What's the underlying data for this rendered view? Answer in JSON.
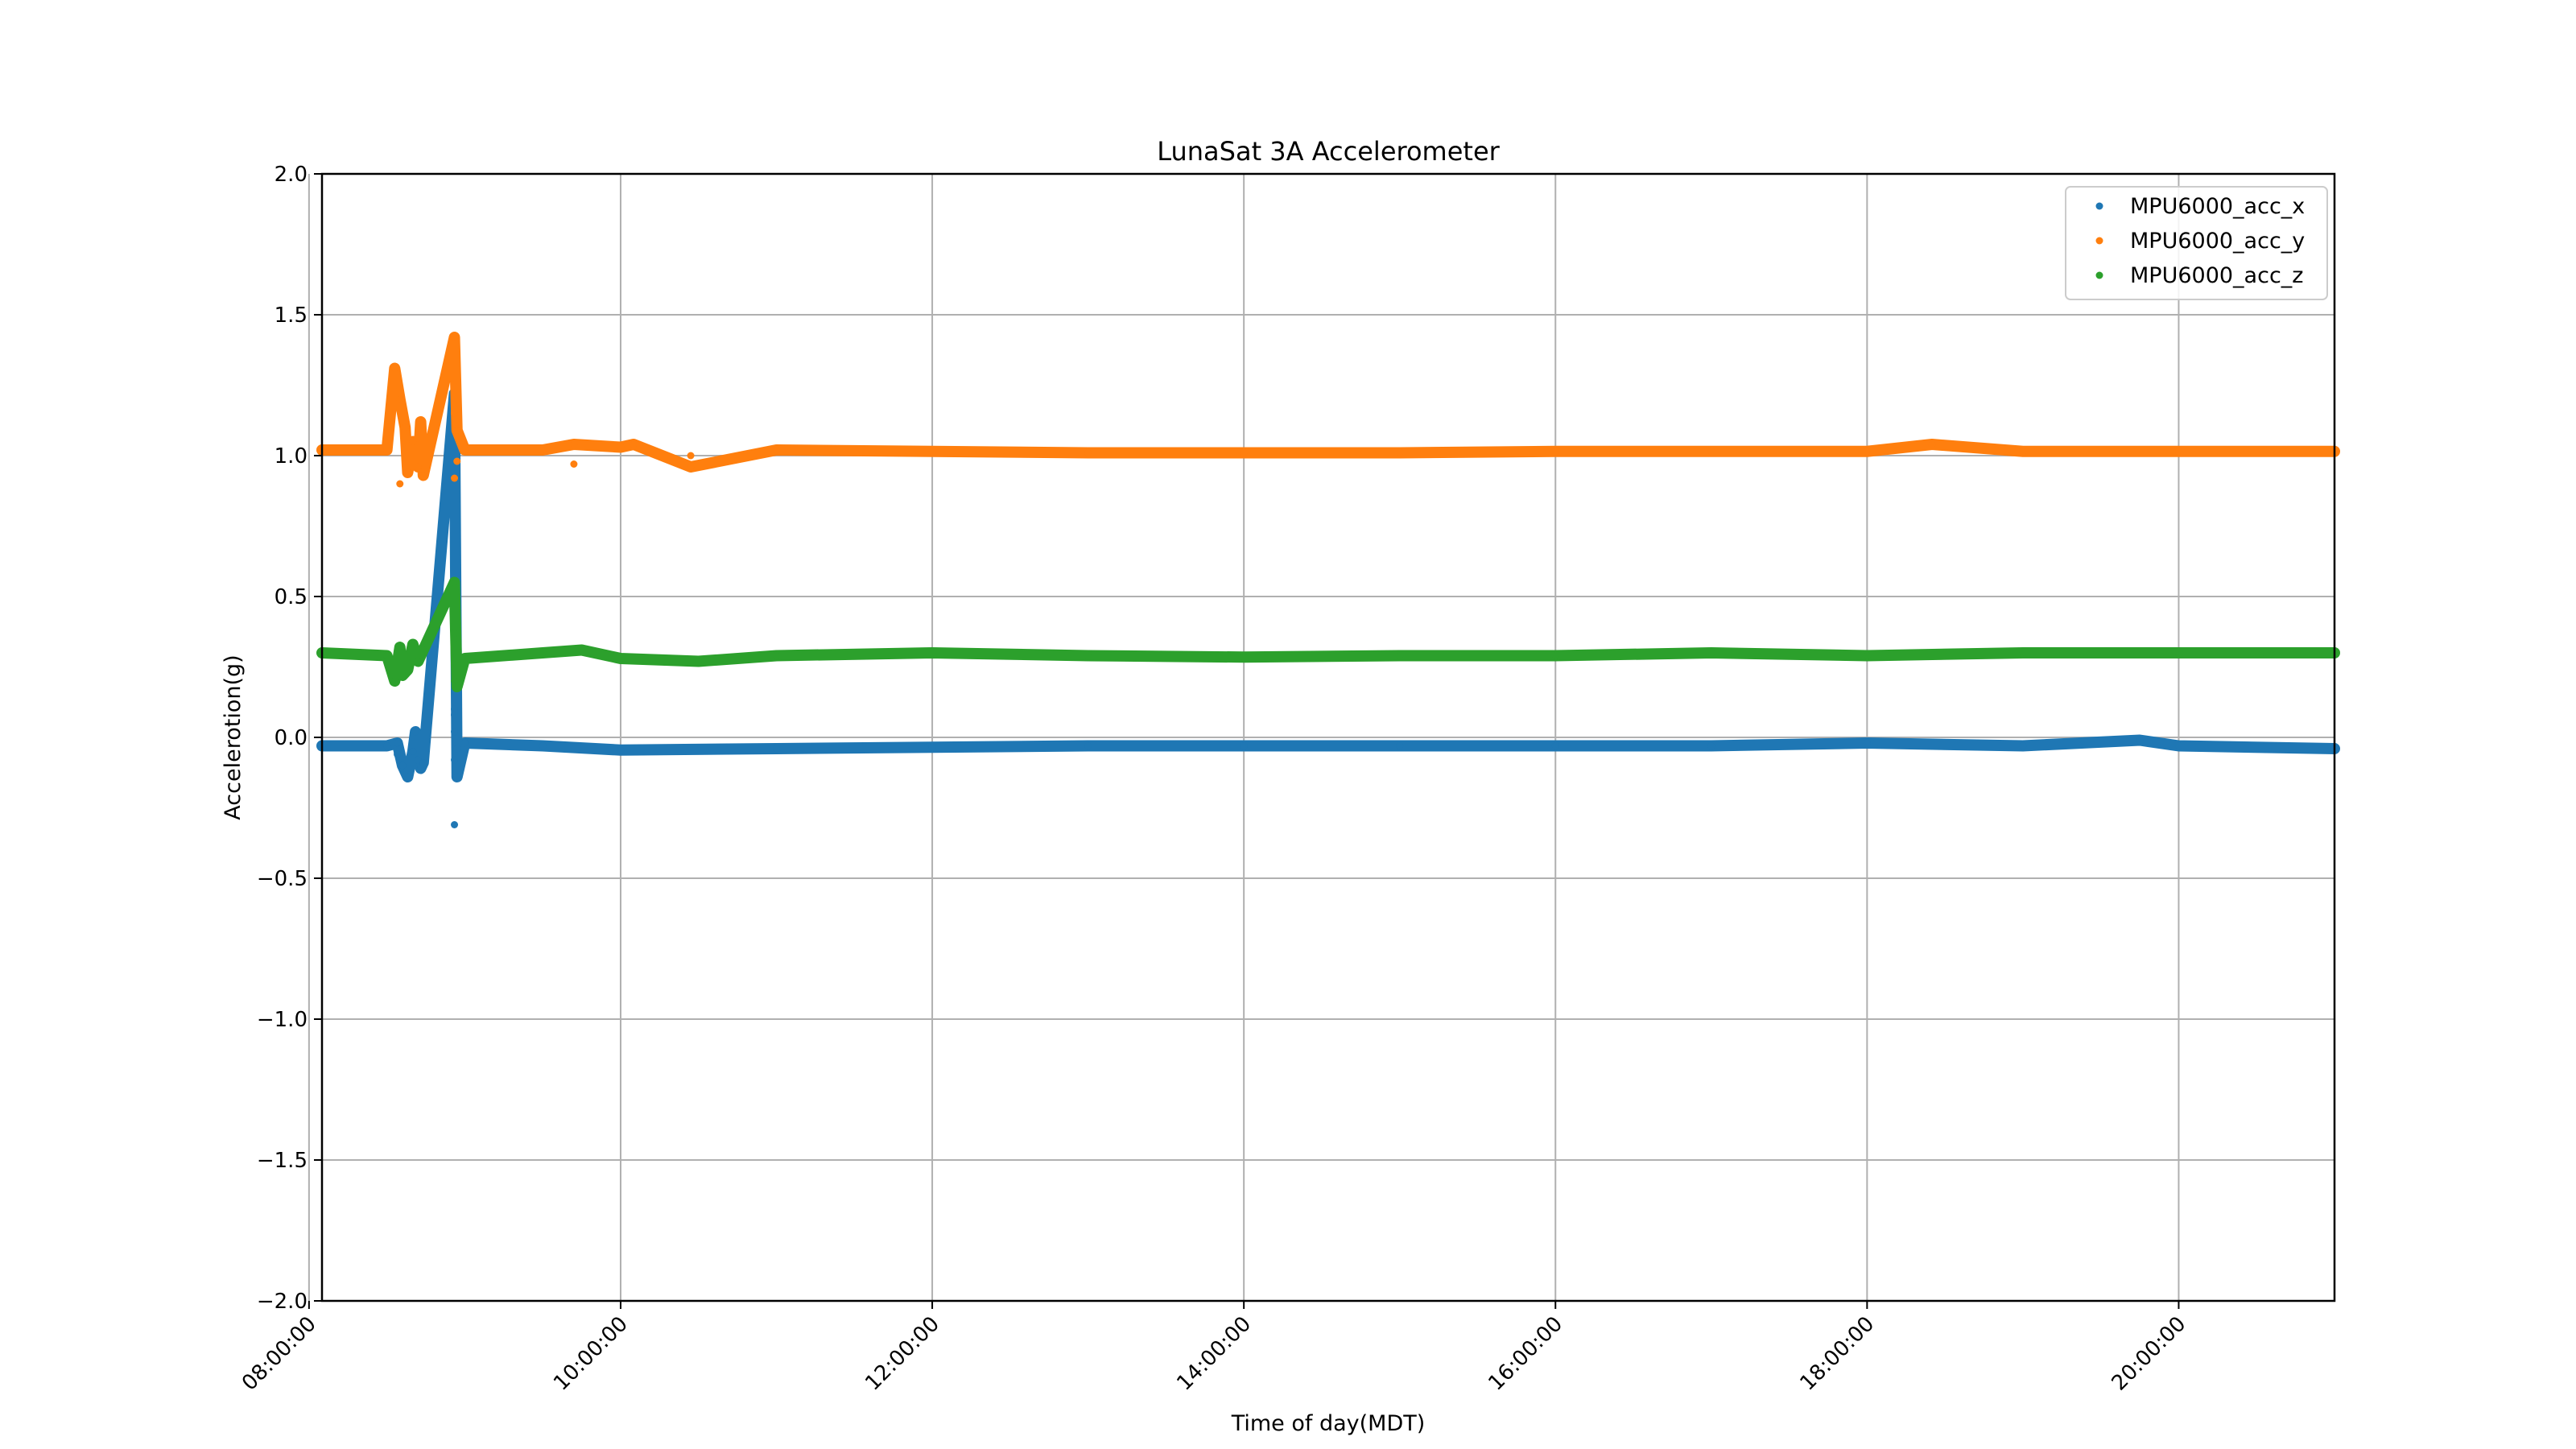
{
  "chart_data": {
    "type": "scatter",
    "title": "LunaSat 3A Accelerometer",
    "xlabel": "Time of day(MDT)",
    "ylabel": "Accelerotion(g)",
    "xlim": [
      "08:05:00",
      "21:00:00"
    ],
    "ylim": [
      -2.0,
      2.0
    ],
    "x_ticks": [
      "08:00:00",
      "10:00:00",
      "12:00:00",
      "14:00:00",
      "16:00:00",
      "18:00:00",
      "20:00:00"
    ],
    "y_ticks": [
      "2.0",
      "1.5",
      "1.0",
      "0.5",
      "0.0",
      "−0.5",
      "−1.0",
      "−1.5",
      "−2.0"
    ],
    "grid": true,
    "legend_position": "top-right",
    "series": [
      {
        "name": "MPU6000_acc_x",
        "color": "#1f77b4",
        "points": [
          [
            "08:05:00",
            -0.03
          ],
          [
            "08:30:00",
            -0.03
          ],
          [
            "08:34:00",
            -0.02
          ],
          [
            "08:34:00",
            -0.06
          ],
          [
            "08:36:00",
            -0.1
          ],
          [
            "08:38:00",
            -0.14
          ],
          [
            "08:40:00",
            -0.05
          ],
          [
            "08:41:00",
            0.02
          ],
          [
            "08:42:00",
            -0.08
          ],
          [
            "08:43:00",
            -0.11
          ],
          [
            "08:44:00",
            -0.09
          ],
          [
            "08:56:00",
            1.22
          ],
          [
            "08:56:00",
            -0.31
          ],
          [
            "08:56:00",
            0.1
          ],
          [
            "08:56:00",
            0.08
          ],
          [
            "08:56:00",
            0.02
          ],
          [
            "08:56:00",
            -0.08
          ],
          [
            "08:57:00",
            -0.14
          ],
          [
            "08:57:00",
            -0.04
          ],
          [
            "09:00:00",
            -0.02
          ],
          [
            "09:30:00",
            -0.03
          ],
          [
            "10:00:00",
            -0.045
          ],
          [
            "11:00:00",
            -0.04
          ],
          [
            "12:00:00",
            -0.035
          ],
          [
            "13:00:00",
            -0.03
          ],
          [
            "14:00:00",
            -0.03
          ],
          [
            "15:00:00",
            -0.03
          ],
          [
            "16:00:00",
            -0.03
          ],
          [
            "17:00:00",
            -0.03
          ],
          [
            "18:00:00",
            -0.02
          ],
          [
            "19:00:00",
            -0.03
          ],
          [
            "19:45:00",
            -0.01
          ],
          [
            "20:00:00",
            -0.03
          ],
          [
            "21:00:00",
            -0.04
          ]
        ]
      },
      {
        "name": "MPU6000_acc_y",
        "color": "#ff7f0e",
        "points": [
          [
            "08:05:00",
            1.02
          ],
          [
            "08:30:00",
            1.02
          ],
          [
            "08:33:00",
            1.31
          ],
          [
            "08:35:00",
            1.2
          ],
          [
            "08:35:00",
            0.9
          ],
          [
            "08:37:00",
            1.1
          ],
          [
            "08:38:00",
            0.94
          ],
          [
            "08:40:00",
            1.05
          ],
          [
            "08:42:00",
            0.96
          ],
          [
            "08:43:00",
            1.12
          ],
          [
            "08:44:00",
            0.93
          ],
          [
            "08:56:00",
            1.42
          ],
          [
            "08:56:00",
            1.15
          ],
          [
            "08:56:00",
            0.92
          ],
          [
            "08:57:00",
            1.09
          ],
          [
            "08:57:00",
            0.98
          ],
          [
            "09:00:00",
            1.02
          ],
          [
            "09:30:00",
            1.02
          ],
          [
            "09:42:00",
            1.04
          ],
          [
            "09:42:00",
            0.97
          ],
          [
            "10:00:00",
            1.03
          ],
          [
            "10:05:00",
            1.04
          ],
          [
            "10:27:00",
            0.96
          ],
          [
            "10:27:00",
            1.0
          ],
          [
            "11:00:00",
            1.02
          ],
          [
            "12:00:00",
            1.015
          ],
          [
            "13:00:00",
            1.01
          ],
          [
            "14:00:00",
            1.01
          ],
          [
            "15:00:00",
            1.01
          ],
          [
            "16:00:00",
            1.015
          ],
          [
            "17:00:00",
            1.015
          ],
          [
            "18:00:00",
            1.015
          ],
          [
            "18:25:00",
            1.04
          ],
          [
            "19:00:00",
            1.015
          ],
          [
            "20:00:00",
            1.015
          ],
          [
            "21:00:00",
            1.015
          ]
        ]
      },
      {
        "name": "MPU6000_acc_z",
        "color": "#2ca02c",
        "points": [
          [
            "08:05:00",
            0.3
          ],
          [
            "08:30:00",
            0.29
          ],
          [
            "08:33:00",
            0.2
          ],
          [
            "08:35:00",
            0.32
          ],
          [
            "08:36:00",
            0.22
          ],
          [
            "08:38:00",
            0.24
          ],
          [
            "08:40:00",
            0.33
          ],
          [
            "08:42:00",
            0.27
          ],
          [
            "08:44:00",
            0.31
          ],
          [
            "08:56:00",
            0.55
          ],
          [
            "08:56:00",
            0.37
          ],
          [
            "08:56:00",
            0.35
          ],
          [
            "08:56:00",
            0.2
          ],
          [
            "08:57:00",
            0.18
          ],
          [
            "08:57:00",
            0.26
          ],
          [
            "09:00:00",
            0.28
          ],
          [
            "09:30:00",
            0.3
          ],
          [
            "09:45:00",
            0.31
          ],
          [
            "10:00:00",
            0.28
          ],
          [
            "10:30:00",
            0.27
          ],
          [
            "11:00:00",
            0.29
          ],
          [
            "12:00:00",
            0.3
          ],
          [
            "13:00:00",
            0.29
          ],
          [
            "14:00:00",
            0.285
          ],
          [
            "15:00:00",
            0.29
          ],
          [
            "16:00:00",
            0.29
          ],
          [
            "17:00:00",
            0.3
          ],
          [
            "18:00:00",
            0.29
          ],
          [
            "19:00:00",
            0.3
          ],
          [
            "20:00:00",
            0.3
          ],
          [
            "21:00:00",
            0.3
          ]
        ]
      }
    ]
  }
}
